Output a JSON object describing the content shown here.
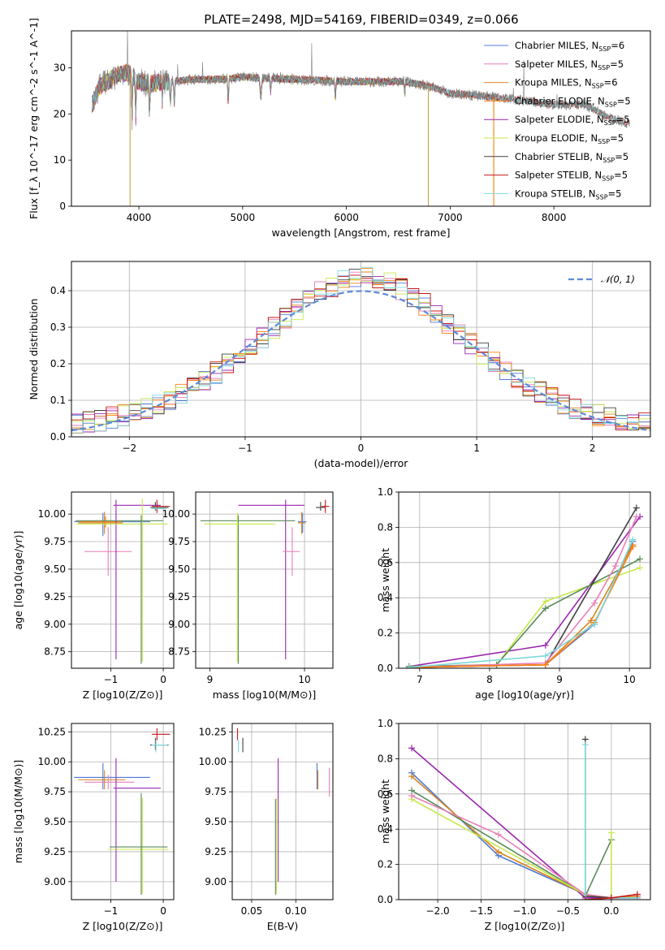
{
  "figure": {
    "title": "PLATE=2498, MJD=54169, FIBERID=0349, z=0.066"
  },
  "series_colors": {
    "Chabrier MILES": "#4c78d8",
    "Salpeter MILES": "#e87fb8",
    "Kroupa MILES": "#d9841f",
    "Chabrier ELODIE": "#ff7f0e",
    "Salpeter ELODIE": "#9b27b0",
    "Kroupa ELODIE": "#c6e84a",
    "Chabrier STELIB": "#404040",
    "Salpeter STELIB": "#c81818",
    "Kroupa STELIB": "#7ed8dc",
    "gray": "#7f7f7f",
    "green": "#5a8a5a",
    "normal_curve": "#5b8bd9"
  },
  "chart_data": [
    {
      "id": "spectrum",
      "type": "line",
      "xlabel": "wavelength [Angstrom, rest frame]",
      "ylabel": "Flux [f_λ 10^-17 erg cm^-2 s^-1 A^-1]",
      "xlim": [
        3350,
        8930
      ],
      "ylim": [
        0,
        38
      ],
      "xticks": [
        "4000",
        "5000",
        "6000",
        "7000",
        "8000"
      ],
      "yticks": [
        "0",
        "10",
        "20",
        "30"
      ],
      "legend": {
        "position": "top-right",
        "entries": [
          {
            "name": "Chabrier MILES",
            "nssp": "6"
          },
          {
            "name": "Salpeter MILES",
            "nssp": "5"
          },
          {
            "name": "Kroupa MILES",
            "nssp": "6"
          },
          {
            "name": "Chabrier ELODIE",
            "nssp": "5"
          },
          {
            "name": "Salpeter ELODIE",
            "nssp": "5"
          },
          {
            "name": "Kroupa ELODIE",
            "nssp": "5"
          },
          {
            "name": "Chabrier STELIB",
            "nssp": "5"
          },
          {
            "name": "Salpeter STELIB",
            "nssp": "5"
          },
          {
            "name": "Kroupa STELIB",
            "nssp": "5"
          }
        ]
      },
      "continuum_knots": [
        [
          3550,
          22
        ],
        [
          3620,
          26
        ],
        [
          3700,
          27
        ],
        [
          3800,
          28.5
        ],
        [
          3900,
          29
        ],
        [
          4000,
          27
        ],
        [
          4100,
          26.5
        ],
        [
          4300,
          27
        ],
        [
          4500,
          27.5
        ],
        [
          4800,
          27.5
        ],
        [
          5000,
          28
        ],
        [
          5500,
          27.5
        ],
        [
          6000,
          27
        ],
        [
          6300,
          27
        ],
        [
          6560,
          27
        ],
        [
          6800,
          26
        ],
        [
          7000,
          24.5
        ],
        [
          7500,
          23.5
        ],
        [
          8000,
          22
        ],
        [
          8300,
          22
        ],
        [
          8500,
          19.5
        ],
        [
          8700,
          18
        ]
      ],
      "dropouts": [
        [
          3915,
          0
        ],
        [
          6790,
          0
        ],
        [
          7420,
          0
        ]
      ]
    },
    {
      "id": "residuals",
      "type": "step",
      "xlabel": "(data-model)/error",
      "ylabel": "Normed distribution",
      "xlim": [
        -2.5,
        2.5
      ],
      "ylim": [
        0,
        0.48
      ],
      "xticks": [
        "−2",
        "−1",
        "0",
        "1",
        "2"
      ],
      "yticks": [
        "0.0",
        "0.1",
        "0.2",
        "0.3",
        "0.4"
      ],
      "legend": {
        "position": "top-right",
        "label": "𝒩(0, 1)"
      },
      "bin_width": 0.1
    },
    {
      "id": "age_vs_Z",
      "type": "errorbar",
      "xlabel": "Z [log10(Z/Z⊙)]",
      "ylabel": "age  [log10(age/yr)]",
      "xlim": [
        -1.75,
        0.2
      ],
      "ylim": [
        8.6,
        10.2
      ],
      "xticks": [
        "−1",
        "0"
      ],
      "yticks": [
        "8.75",
        "9.00",
        "9.25",
        "9.50",
        "9.75",
        "10.00"
      ],
      "bars": [
        {
          "s": "Chabrier MILES",
          "x": -1.15,
          "dxl": 0.55,
          "dxh": 0.9,
          "y": 9.93,
          "dyl": 0.13,
          "dyh": 0.08
        },
        {
          "s": "Salpeter MILES",
          "x": -1.05,
          "dxl": 0.45,
          "dxh": 0.45,
          "y": 9.66,
          "dyl": 0.22,
          "dyh": 0.22
        },
        {
          "s": "Kroupa MILES",
          "x": -1.12,
          "dxl": 0.5,
          "dxh": 0.35,
          "y": 9.92,
          "dyl": 0.1,
          "dyh": 0.1
        },
        {
          "s": "Chabrier ELODIE",
          "x": -1.1,
          "dxl": 0.5,
          "dxh": 0.3,
          "y": 9.93,
          "dyl": 0.05,
          "dyh": 0.05
        },
        {
          "s": "Salpeter ELODIE",
          "x": -0.9,
          "dxl": 0.05,
          "dxh": 0.85,
          "y": 10.08,
          "dyl": 1.4,
          "dyh": 0.05
        },
        {
          "s": "Kroupa ELODIE",
          "x": -0.4,
          "dxl": 1.25,
          "dxh": 0.48,
          "y": 9.91,
          "dyl": 1.25,
          "dyh": 0.23
        },
        {
          "s": "green",
          "x": -0.42,
          "dxl": 1.25,
          "dxh": 0.42,
          "y": 9.94,
          "dyl": 1.3,
          "dyh": 0.05
        },
        {
          "s": "Chabrier STELIB",
          "x": -0.15,
          "dxl": 0.1,
          "dxh": 0.25,
          "y": 10.06,
          "dyl": 0.03,
          "dyh": 0.05
        },
        {
          "s": "Salpeter STELIB",
          "x": -0.12,
          "dxl": 0.1,
          "dxh": 0.25,
          "y": 10.07,
          "dyl": 0.06,
          "dyh": 0.06
        },
        {
          "s": "Kroupa STELIB",
          "x": -0.14,
          "dxl": 0.08,
          "dxh": 0.2,
          "y": 10.05,
          "dyl": 0.02,
          "dyh": 0.02
        }
      ]
    },
    {
      "id": "age_vs_mass",
      "type": "errorbar",
      "xlabel": "mass [log10(M/M⊙)]",
      "ylabel": "",
      "xlim": [
        8.85,
        10.3
      ],
      "ylim": [
        8.6,
        10.2
      ],
      "xticks": [
        "9",
        "10"
      ],
      "yticks": [
        "8.75",
        "9.00",
        "9.25",
        "9.50",
        "9.75",
        "10.00"
      ],
      "bars": [
        {
          "s": "Salpeter ELODIE",
          "x": 9.8,
          "dxl": 0.5,
          "dxh": 0.2,
          "y": 10.08,
          "dyl": 1.4,
          "dyh": 0.05
        },
        {
          "s": "green",
          "x": 9.3,
          "dxl": 0.4,
          "dxh": 0.6,
          "y": 9.94,
          "dyl": 1.3,
          "dyh": 0.05
        },
        {
          "s": "Kroupa ELODIE",
          "x": 9.29,
          "dxl": 0.35,
          "dxh": 0.4,
          "y": 9.91,
          "dyl": 1.25,
          "dyh": 0.1
        },
        {
          "s": "Chabrier MILES",
          "x": 9.98,
          "dxl": 0.05,
          "dxh": 0.04,
          "y": 9.93,
          "dyl": 0.1,
          "dyh": 0.08
        },
        {
          "s": "Kroupa MILES",
          "x": 9.97,
          "dxl": 0.04,
          "dxh": 0.04,
          "y": 9.92,
          "dyl": 0.1,
          "dyh": 0.1
        },
        {
          "s": "Salpeter MILES",
          "x": 9.87,
          "dxl": 0.1,
          "dxh": 0.08,
          "y": 9.66,
          "dyl": 0.22,
          "dyh": 0.22
        },
        {
          "s": "Chabrier STELIB",
          "x": 10.17,
          "dxl": 0.05,
          "dxh": 0.05,
          "y": 10.06,
          "dyl": 0.03,
          "dyh": 0.05
        },
        {
          "s": "Salpeter STELIB",
          "x": 10.22,
          "dxl": 0.04,
          "dxh": 0.04,
          "y": 10.07,
          "dyl": 0.06,
          "dyh": 0.06
        }
      ]
    },
    {
      "id": "weight_vs_age",
      "type": "line",
      "xlabel": "age  [log10(age/yr)]",
      "ylabel": "mass weight",
      "xlim": [
        6.7,
        10.3
      ],
      "ylim": [
        0,
        1
      ],
      "xticks": [
        "7",
        "8",
        "9",
        "10"
      ],
      "yticks": [
        "0.0",
        "0.2",
        "0.4",
        "0.6",
        "0.8",
        "1.0"
      ],
      "series": [
        {
          "s": "Salpeter ELODIE",
          "x": [
            6.85,
            8.8,
            10.15
          ],
          "y": [
            0.01,
            0.13,
            0.86
          ]
        },
        {
          "s": "Kroupa ELODIE",
          "x": [
            6.85,
            8.1,
            8.8,
            10.15
          ],
          "y": [
            0.01,
            0.02,
            0.38,
            0.57
          ]
        },
        {
          "s": "green",
          "x": [
            6.85,
            8.1,
            8.8,
            10.15
          ],
          "y": [
            0.01,
            0.02,
            0.34,
            0.62
          ]
        },
        {
          "s": "Chabrier STELIB",
          "x": [
            6.85,
            8.8,
            10.1
          ],
          "y": [
            0.005,
            0.02,
            0.91
          ]
        },
        {
          "s": "Salpeter MILES",
          "x": [
            6.85,
            8.8,
            9.5,
            9.8,
            10.1
          ],
          "y": [
            0.005,
            0.03,
            0.37,
            0.58,
            0.86
          ]
        },
        {
          "s": "Chabrier MILES",
          "x": [
            6.85,
            8.8,
            9.5,
            10.05
          ],
          "y": [
            0.005,
            0.02,
            0.25,
            0.72
          ]
        },
        {
          "s": "Kroupa MILES",
          "x": [
            6.85,
            8.8,
            9.45,
            10.05
          ],
          "y": [
            0.005,
            0.02,
            0.27,
            0.7
          ]
        },
        {
          "s": "Chabrier ELODIE",
          "x": [
            6.85,
            8.8,
            9.5,
            10.05
          ],
          "y": [
            0.005,
            0.02,
            0.26,
            0.69
          ]
        },
        {
          "s": "Kroupa STELIB",
          "x": [
            6.85,
            8.8,
            9.5,
            10.05
          ],
          "y": [
            0.005,
            0.07,
            0.25,
            0.73
          ]
        }
      ]
    },
    {
      "id": "mass_vs_Z",
      "type": "errorbar",
      "xlabel": "Z [log10(Z/Z⊙)]",
      "ylabel": "mass [log10(M/M⊙)]",
      "xlim": [
        -1.75,
        0.2
      ],
      "ylim": [
        8.85,
        10.32
      ],
      "xticks": [
        "−1",
        "0"
      ],
      "yticks": [
        "9.00",
        "9.25",
        "9.50",
        "9.75",
        "10.00",
        "10.25"
      ],
      "bars": [
        {
          "s": "Chabrier MILES",
          "x": -1.15,
          "dxl": 0.55,
          "dxh": 0.9,
          "y": 9.87,
          "dyl": 0.1,
          "dyh": 0.12
        },
        {
          "s": "Salpeter MILES",
          "x": -1.05,
          "dxl": 0.45,
          "dxh": 0.5,
          "y": 9.83,
          "dyl": 0.06,
          "dyh": 0.06
        },
        {
          "s": "Kroupa MILES",
          "x": -1.12,
          "dxl": 0.5,
          "dxh": 0.4,
          "y": 9.85,
          "dyl": 0.08,
          "dyh": 0.08
        },
        {
          "s": "Salpeter ELODIE",
          "x": -0.9,
          "dxl": 0.05,
          "dxh": 0.85,
          "y": 9.78,
          "dyl": 0.78,
          "dyh": 0.25
        },
        {
          "s": "Kroupa ELODIE",
          "x": -0.4,
          "dxl": 0.65,
          "dxh": 0.5,
          "y": 9.27,
          "dyl": 0.37,
          "dyh": 0.43
        },
        {
          "s": "green",
          "x": -0.42,
          "dxl": 0.6,
          "dxh": 0.5,
          "y": 9.29,
          "dyl": 0.4,
          "dyh": 0.45
        },
        {
          "s": "Chabrier STELIB",
          "x": -0.15,
          "dxl": 0.1,
          "dxh": 0.25,
          "y": 10.14,
          "dyl": 0.04,
          "dyh": 0.06
        },
        {
          "s": "Salpeter STELIB",
          "x": -0.12,
          "dxl": 0.1,
          "dxh": 0.25,
          "y": 10.23,
          "dyl": 0.05,
          "dyh": 0.05
        },
        {
          "s": "Kroupa STELIB",
          "x": -0.14,
          "dxl": 0.08,
          "dxh": 0.22,
          "y": 10.14,
          "dyl": 0.06,
          "dyh": 0.04
        }
      ]
    },
    {
      "id": "mass_vs_EBV",
      "type": "errorbar",
      "xlabel": "E(B-V)",
      "ylabel": "",
      "xlim": [
        0.028,
        0.142
      ],
      "ylim": [
        8.85,
        10.32
      ],
      "xticks": [
        "0.05",
        "0.10"
      ],
      "yticks": [
        "9.00",
        "9.25",
        "9.50",
        "9.75",
        "10.00",
        "10.25"
      ],
      "bars": [
        {
          "s": "Salpeter ELODIE",
          "x": 0.08,
          "dxl": 0,
          "dxh": 0,
          "y": 9.78,
          "dyl": 0.78,
          "dyh": 0.25
        },
        {
          "s": "Kroupa ELODIE",
          "x": 0.078,
          "dxl": 0,
          "dxh": 0,
          "y": 9.27,
          "dyl": 0.37,
          "dyh": 0.43
        },
        {
          "s": "green",
          "x": 0.077,
          "dxl": 0,
          "dxh": 0,
          "y": 9.29,
          "dyl": 0.4,
          "dyh": 0.4
        },
        {
          "s": "Chabrier MILES",
          "x": 0.124,
          "dxl": 0,
          "dxh": 0,
          "y": 9.87,
          "dyl": 0.1,
          "dyh": 0.12
        },
        {
          "s": "Kroupa MILES",
          "x": 0.125,
          "dxl": 0,
          "dxh": 0,
          "y": 9.85,
          "dyl": 0.08,
          "dyh": 0.08
        },
        {
          "s": "Salpeter MILES",
          "x": 0.138,
          "dxl": 0,
          "dxh": 0,
          "y": 9.83,
          "dyl": 0.12,
          "dyh": 0.12
        },
        {
          "s": "Chabrier STELIB",
          "x": 0.04,
          "dxl": 0,
          "dxh": 0,
          "y": 10.14,
          "dyl": 0.06,
          "dyh": 0.06
        },
        {
          "s": "Salpeter STELIB",
          "x": 0.034,
          "dxl": 0,
          "dxh": 0,
          "y": 10.23,
          "dyl": 0.05,
          "dyh": 0.05
        },
        {
          "s": "Kroupa STELIB",
          "x": 0.035,
          "dxl": 0,
          "dxh": 0,
          "y": 10.14,
          "dyl": 0.06,
          "dyh": 0.04
        }
      ]
    },
    {
      "id": "weight_vs_Z",
      "type": "line",
      "xlabel": "Z [log10(Z/Z⊙)]",
      "ylabel": "mass weight",
      "xlim": [
        -2.45,
        0.45
      ],
      "ylim": [
        0,
        1
      ],
      "xticks": [
        "−2.0",
        "−1.5",
        "−1.0",
        "−0.5",
        "0.0"
      ],
      "yticks": [
        "0.0",
        "0.2",
        "0.4",
        "0.6",
        "0.8",
        "1.0"
      ],
      "series": [
        {
          "s": "Salpeter ELODIE",
          "x": [
            -2.3,
            -0.3,
            0.0
          ],
          "y": [
            0.86,
            0.01,
            0.01
          ]
        },
        {
          "s": "Chabrier MILES",
          "x": [
            -2.3,
            -1.3,
            -0.3,
            0.0,
            0.3
          ],
          "y": [
            0.72,
            0.25,
            0.03,
            0.01,
            0.01
          ]
        },
        {
          "s": "Kroupa MILES",
          "x": [
            -2.3,
            -1.3,
            -0.3,
            0.0,
            0.3
          ],
          "y": [
            0.7,
            0.27,
            0.03,
            0.01,
            0.02
          ]
        },
        {
          "s": "green",
          "x": [
            -2.3,
            -0.3,
            -0.3,
            0.0
          ],
          "y": [
            0.62,
            0.03,
            0.02,
            0.34
          ]
        },
        {
          "s": "Kroupa ELODIE",
          "x": [
            -2.3,
            -0.3,
            0.0,
            0.0
          ],
          "y": [
            0.57,
            0.03,
            0.01,
            0.38
          ]
        },
        {
          "s": "Salpeter MILES",
          "x": [
            -2.3,
            -1.3,
            -0.3,
            0.0,
            0.3
          ],
          "y": [
            0.59,
            0.37,
            0.03,
            0.01,
            0.01
          ]
        },
        {
          "s": "Chabrier STELIB",
          "x": [
            -0.3,
            -0.3,
            0.0,
            0.3
          ],
          "y": [
            0.91,
            0.02,
            0.01,
            0.01
          ]
        },
        {
          "s": "Kroupa STELIB",
          "x": [
            -0.3,
            -0.3,
            0.0,
            0.3
          ],
          "y": [
            0.88,
            0.0,
            0.01,
            0.01
          ]
        },
        {
          "s": "Salpeter STELIB",
          "x": [
            -0.3,
            0.0,
            0.3
          ],
          "y": [
            0.0,
            0.01,
            0.03
          ]
        }
      ]
    }
  ]
}
